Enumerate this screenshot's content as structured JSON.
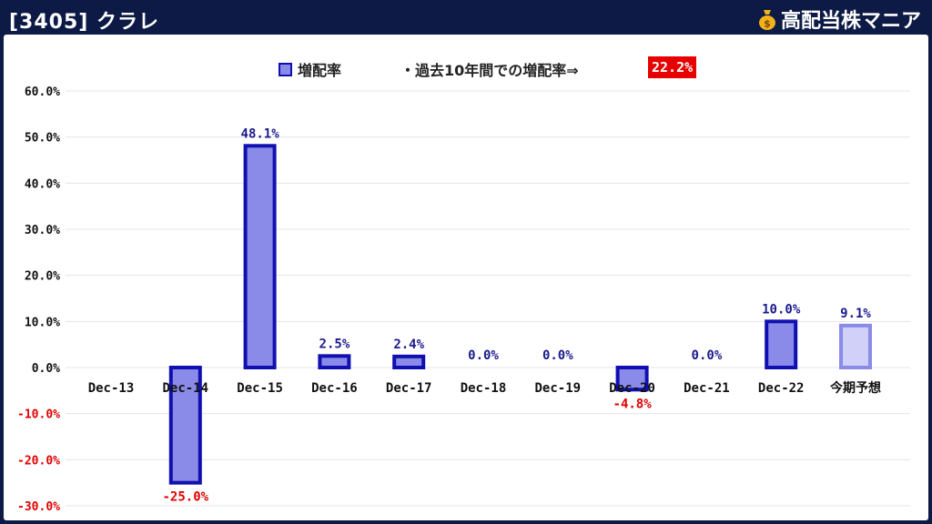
{
  "header": {
    "title": "[3405] クラレ",
    "brand": "高配当株マニア",
    "brand_icon": "money-bag-icon"
  },
  "note": {
    "text": "・過去10年間での増配率⇒",
    "value": "22.2%"
  },
  "colors": {
    "frame": "#0c1a45",
    "bar_fill": "#8a8ae8",
    "bar_stroke": "#1010b0",
    "forecast_fill": "#d0d0f8",
    "forecast_stroke": "#8a8ae8",
    "positive_label": "#1a1a8c",
    "negative_label": "#e00000",
    "note_bg": "#e60000"
  },
  "chart_data": {
    "type": "bar",
    "categories": [
      "Dec-13",
      "Dec-14",
      "Dec-15",
      "Dec-16",
      "Dec-17",
      "Dec-18",
      "Dec-19",
      "Dec-20",
      "Dec-21",
      "Dec-22",
      "今期予想"
    ],
    "series": [
      {
        "name": "増配率",
        "values": [
          null,
          -25.0,
          48.1,
          2.5,
          2.4,
          0.0,
          0.0,
          -4.8,
          0.0,
          10.0,
          9.1
        ],
        "labels": [
          "",
          "-25.0%",
          "48.1%",
          "2.5%",
          "2.4%",
          "0.0%",
          "0.0%",
          "-4.8%",
          "0.0%",
          "10.0%",
          "9.1%"
        ]
      }
    ],
    "forecast_index": 10,
    "yticks": [
      60,
      50,
      40,
      30,
      20,
      10,
      0,
      -10,
      -20,
      -30
    ],
    "ytick_labels": [
      "60.0%",
      "50.0%",
      "40.0%",
      "30.0%",
      "20.0%",
      "10.0%",
      "0.0%",
      "-10.0%",
      "-20.0%",
      "-30.0%"
    ],
    "ylim": [
      -30,
      60
    ],
    "grid": true,
    "legend": "top-center",
    "title": "",
    "xlabel": "",
    "ylabel": ""
  }
}
